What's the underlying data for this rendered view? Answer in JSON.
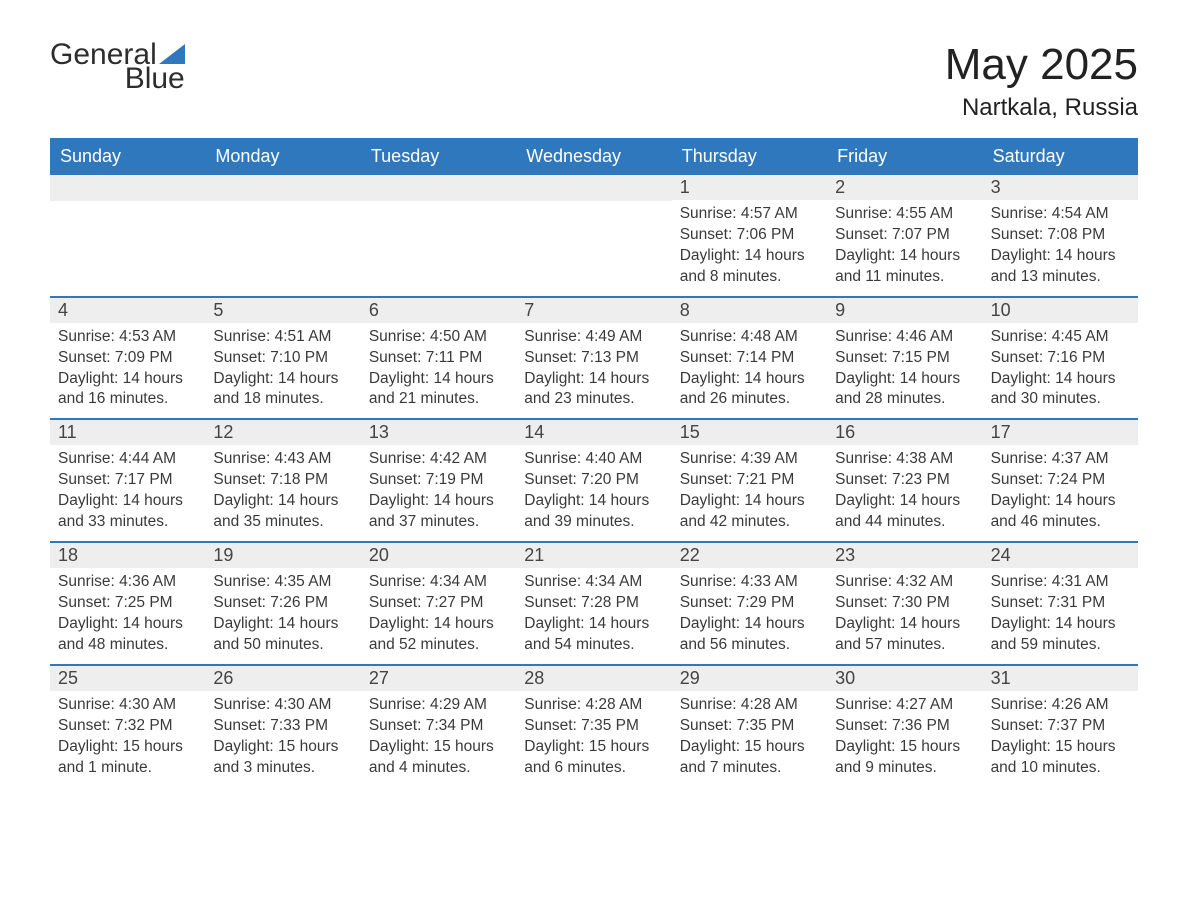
{
  "logo": {
    "word1": "General",
    "word2": "Blue"
  },
  "title": "May 2025",
  "location": "Nartkala, Russia",
  "colors": {
    "header_bg": "#2f78bd",
    "header_text": "#ffffff",
    "daynum_bg": "#eeeeee",
    "text": "#333333",
    "divider": "#2f78bd",
    "background": "#ffffff"
  },
  "weekdays": [
    "Sunday",
    "Monday",
    "Tuesday",
    "Wednesday",
    "Thursday",
    "Friday",
    "Saturday"
  ],
  "weeks": [
    [
      {
        "empty": true
      },
      {
        "empty": true
      },
      {
        "empty": true
      },
      {
        "empty": true
      },
      {
        "n": "1",
        "sunrise": "Sunrise: 4:57 AM",
        "sunset": "Sunset: 7:06 PM",
        "daylight": "Daylight: 14 hours and 8 minutes."
      },
      {
        "n": "2",
        "sunrise": "Sunrise: 4:55 AM",
        "sunset": "Sunset: 7:07 PM",
        "daylight": "Daylight: 14 hours and 11 minutes."
      },
      {
        "n": "3",
        "sunrise": "Sunrise: 4:54 AM",
        "sunset": "Sunset: 7:08 PM",
        "daylight": "Daylight: 14 hours and 13 minutes."
      }
    ],
    [
      {
        "n": "4",
        "sunrise": "Sunrise: 4:53 AM",
        "sunset": "Sunset: 7:09 PM",
        "daylight": "Daylight: 14 hours and 16 minutes."
      },
      {
        "n": "5",
        "sunrise": "Sunrise: 4:51 AM",
        "sunset": "Sunset: 7:10 PM",
        "daylight": "Daylight: 14 hours and 18 minutes."
      },
      {
        "n": "6",
        "sunrise": "Sunrise: 4:50 AM",
        "sunset": "Sunset: 7:11 PM",
        "daylight": "Daylight: 14 hours and 21 minutes."
      },
      {
        "n": "7",
        "sunrise": "Sunrise: 4:49 AM",
        "sunset": "Sunset: 7:13 PM",
        "daylight": "Daylight: 14 hours and 23 minutes."
      },
      {
        "n": "8",
        "sunrise": "Sunrise: 4:48 AM",
        "sunset": "Sunset: 7:14 PM",
        "daylight": "Daylight: 14 hours and 26 minutes."
      },
      {
        "n": "9",
        "sunrise": "Sunrise: 4:46 AM",
        "sunset": "Sunset: 7:15 PM",
        "daylight": "Daylight: 14 hours and 28 minutes."
      },
      {
        "n": "10",
        "sunrise": "Sunrise: 4:45 AM",
        "sunset": "Sunset: 7:16 PM",
        "daylight": "Daylight: 14 hours and 30 minutes."
      }
    ],
    [
      {
        "n": "11",
        "sunrise": "Sunrise: 4:44 AM",
        "sunset": "Sunset: 7:17 PM",
        "daylight": "Daylight: 14 hours and 33 minutes."
      },
      {
        "n": "12",
        "sunrise": "Sunrise: 4:43 AM",
        "sunset": "Sunset: 7:18 PM",
        "daylight": "Daylight: 14 hours and 35 minutes."
      },
      {
        "n": "13",
        "sunrise": "Sunrise: 4:42 AM",
        "sunset": "Sunset: 7:19 PM",
        "daylight": "Daylight: 14 hours and 37 minutes."
      },
      {
        "n": "14",
        "sunrise": "Sunrise: 4:40 AM",
        "sunset": "Sunset: 7:20 PM",
        "daylight": "Daylight: 14 hours and 39 minutes."
      },
      {
        "n": "15",
        "sunrise": "Sunrise: 4:39 AM",
        "sunset": "Sunset: 7:21 PM",
        "daylight": "Daylight: 14 hours and 42 minutes."
      },
      {
        "n": "16",
        "sunrise": "Sunrise: 4:38 AM",
        "sunset": "Sunset: 7:23 PM",
        "daylight": "Daylight: 14 hours and 44 minutes."
      },
      {
        "n": "17",
        "sunrise": "Sunrise: 4:37 AM",
        "sunset": "Sunset: 7:24 PM",
        "daylight": "Daylight: 14 hours and 46 minutes."
      }
    ],
    [
      {
        "n": "18",
        "sunrise": "Sunrise: 4:36 AM",
        "sunset": "Sunset: 7:25 PM",
        "daylight": "Daylight: 14 hours and 48 minutes."
      },
      {
        "n": "19",
        "sunrise": "Sunrise: 4:35 AM",
        "sunset": "Sunset: 7:26 PM",
        "daylight": "Daylight: 14 hours and 50 minutes."
      },
      {
        "n": "20",
        "sunrise": "Sunrise: 4:34 AM",
        "sunset": "Sunset: 7:27 PM",
        "daylight": "Daylight: 14 hours and 52 minutes."
      },
      {
        "n": "21",
        "sunrise": "Sunrise: 4:34 AM",
        "sunset": "Sunset: 7:28 PM",
        "daylight": "Daylight: 14 hours and 54 minutes."
      },
      {
        "n": "22",
        "sunrise": "Sunrise: 4:33 AM",
        "sunset": "Sunset: 7:29 PM",
        "daylight": "Daylight: 14 hours and 56 minutes."
      },
      {
        "n": "23",
        "sunrise": "Sunrise: 4:32 AM",
        "sunset": "Sunset: 7:30 PM",
        "daylight": "Daylight: 14 hours and 57 minutes."
      },
      {
        "n": "24",
        "sunrise": "Sunrise: 4:31 AM",
        "sunset": "Sunset: 7:31 PM",
        "daylight": "Daylight: 14 hours and 59 minutes."
      }
    ],
    [
      {
        "n": "25",
        "sunrise": "Sunrise: 4:30 AM",
        "sunset": "Sunset: 7:32 PM",
        "daylight": "Daylight: 15 hours and 1 minute."
      },
      {
        "n": "26",
        "sunrise": "Sunrise: 4:30 AM",
        "sunset": "Sunset: 7:33 PM",
        "daylight": "Daylight: 15 hours and 3 minutes."
      },
      {
        "n": "27",
        "sunrise": "Sunrise: 4:29 AM",
        "sunset": "Sunset: 7:34 PM",
        "daylight": "Daylight: 15 hours and 4 minutes."
      },
      {
        "n": "28",
        "sunrise": "Sunrise: 4:28 AM",
        "sunset": "Sunset: 7:35 PM",
        "daylight": "Daylight: 15 hours and 6 minutes."
      },
      {
        "n": "29",
        "sunrise": "Sunrise: 4:28 AM",
        "sunset": "Sunset: 7:35 PM",
        "daylight": "Daylight: 15 hours and 7 minutes."
      },
      {
        "n": "30",
        "sunrise": "Sunrise: 4:27 AM",
        "sunset": "Sunset: 7:36 PM",
        "daylight": "Daylight: 15 hours and 9 minutes."
      },
      {
        "n": "31",
        "sunrise": "Sunrise: 4:26 AM",
        "sunset": "Sunset: 7:37 PM",
        "daylight": "Daylight: 15 hours and 10 minutes."
      }
    ]
  ]
}
